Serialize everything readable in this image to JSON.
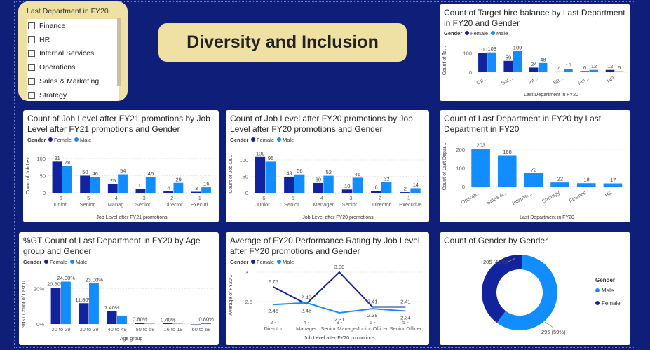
{
  "slicer": {
    "title": "Last Department in FY20",
    "items": [
      "Finance",
      "HR",
      "Internal Services",
      "Operations",
      "Sales & Marketing",
      "Strategy"
    ]
  },
  "banner": {
    "title": "Diversity and Inclusion"
  },
  "colors": {
    "female": "#12239e",
    "male": "#118dff",
    "single": "#118dff",
    "background": "#0f1e78",
    "accent": "#efe1a3"
  },
  "legend": {
    "title": "Gender",
    "female": "Female",
    "male": "Male"
  },
  "chart_data": [
    {
      "id": "target-hire",
      "type": "bar",
      "title": "Count of Target hire balance by Last Department in FY20 and Gender",
      "xlabel": "Last Department in FY20",
      "ylabel": "Count of Ta...",
      "ylim": [
        0,
        120
      ],
      "yticks": [
        0,
        100
      ],
      "categories": [
        "Op...",
        "Sal...",
        "Int...",
        "Str...",
        "Fin...",
        "HR"
      ],
      "series": [
        {
          "name": "Female",
          "values": [
            100,
            59,
            24,
            4,
            6,
            12
          ]
        },
        {
          "name": "Male",
          "values": [
            103,
            109,
            48,
            18,
            12,
            5
          ]
        }
      ]
    },
    {
      "id": "job-level-fy21",
      "type": "bar",
      "title": "Count of Job Level after FY21 promotions by Job Level after FY21 promotions and Gender",
      "xlabel": "Job Level after FY21 promotions",
      "ylabel": "Count of Job Lev...",
      "ylim": [
        0,
        110
      ],
      "yticks": [
        0,
        50,
        100
      ],
      "categories": [
        "6 - Junior ...",
        "5 - Senior ...",
        "4 - Manag...",
        "3 - Senior ...",
        "2 - Director",
        "1 - Executi..."
      ],
      "series": [
        {
          "name": "Female",
          "values": [
            91,
            50,
            25,
            11,
            4,
            3
          ]
        },
        {
          "name": "Male",
          "values": [
            78,
            46,
            54,
            46,
            29,
            16
          ]
        }
      ]
    },
    {
      "id": "job-level-fy20",
      "type": "bar",
      "title": "Count of Job Level after FY20 promotions by Job Level after FY20 promotions and Gender",
      "xlabel": "Job Level after FY20 promotions",
      "ylabel": "Count of Job Le...",
      "ylim": [
        0,
        115
      ],
      "yticks": [
        0,
        50,
        100
      ],
      "categories": [
        "6 - Junior ...",
        "5 - Senior ...",
        "4 - Manager",
        "3 - Senior ...",
        "2 - Director",
        "1 - Executive"
      ],
      "series": [
        {
          "name": "Female",
          "values": [
            109,
            49,
            30,
            10,
            6,
            2
          ]
        },
        {
          "name": "Male",
          "values": [
            95,
            56,
            52,
            46,
            32,
            14
          ]
        }
      ]
    },
    {
      "id": "last-dept",
      "type": "bar",
      "title": "Count of Last Department in FY20 by Last Department in FY20",
      "xlabel": "Last Department in FY20",
      "ylabel": "Count of Last Depar...",
      "ylim": [
        0,
        215
      ],
      "yticks": [
        0,
        100,
        200
      ],
      "categories": [
        "Operati...",
        "Sales &...",
        "Internal ...",
        "Strategy",
        "Finance",
        "HR"
      ],
      "series": [
        {
          "values": [
            203,
            168,
            72,
            22,
            18,
            17
          ]
        }
      ]
    },
    {
      "id": "age-group",
      "type": "bar",
      "title": "%GT Count of Last Department in FY20 by Age group and Gender",
      "xlabel": "Age group",
      "ylabel": "%GT Count of Last D...",
      "ylim": [
        0,
        0.25
      ],
      "yticks": [
        0,
        0.2
      ],
      "ytick_labels": [
        "0%",
        "20%"
      ],
      "categories": [
        "20 to 29",
        "30 to 39",
        "40 to 49",
        "50 to 59",
        "16 to 19",
        "60 to 69"
      ],
      "series": [
        {
          "name": "Female",
          "values": [
            0.206,
            0.118,
            0.074,
            0.008,
            0.004,
            0
          ],
          "labels": [
            "20.60%",
            "11.80%",
            "7.40%",
            "0.80%",
            "0.40%",
            ""
          ]
        },
        {
          "name": "Male",
          "values": [
            0.24,
            0.23,
            0.048,
            0.002,
            0.002,
            0.008
          ],
          "labels": [
            "24.00%",
            "23.00%",
            "",
            "",
            "",
            "0.80%"
          ]
        }
      ]
    },
    {
      "id": "performance",
      "type": "line",
      "title": "Average of FY20 Performance Rating by Job Level after FY20 promotions and Gender",
      "xlabel": "Job Level after FY20 promotions",
      "ylabel": "Average of FY20 ...",
      "ylim": [
        2.25,
        3.0
      ],
      "yticks": [
        2.5,
        3.0
      ],
      "ytick_labels": [
        "2.5",
        "3.0"
      ],
      "categories": [
        "2 - Director",
        "4 - Manager",
        "3 - Senior Manager",
        "6 - Junior Officer",
        "5 - Senior Officer"
      ],
      "series": [
        {
          "name": "Female",
          "values": [
            2.75,
            2.46,
            3.0,
            2.41,
            2.41
          ],
          "labels": [
            "2.75",
            "2.46",
            "3.00",
            "2.41",
            "2.41"
          ]
        },
        {
          "name": "Male",
          "values": [
            2.45,
            2.48,
            2.31,
            2.38,
            2.34
          ],
          "labels": [
            "2.45",
            "2.48",
            "2.31",
            "2.38",
            "2.34"
          ]
        }
      ]
    },
    {
      "id": "gender",
      "type": "pie",
      "title": "Count of Gender by Gender",
      "legend_title": "Gender",
      "categories": [
        "Male",
        "Female"
      ],
      "values": [
        295,
        205
      ],
      "labels": [
        "295 (59%)",
        "205 (41%)"
      ]
    }
  ]
}
